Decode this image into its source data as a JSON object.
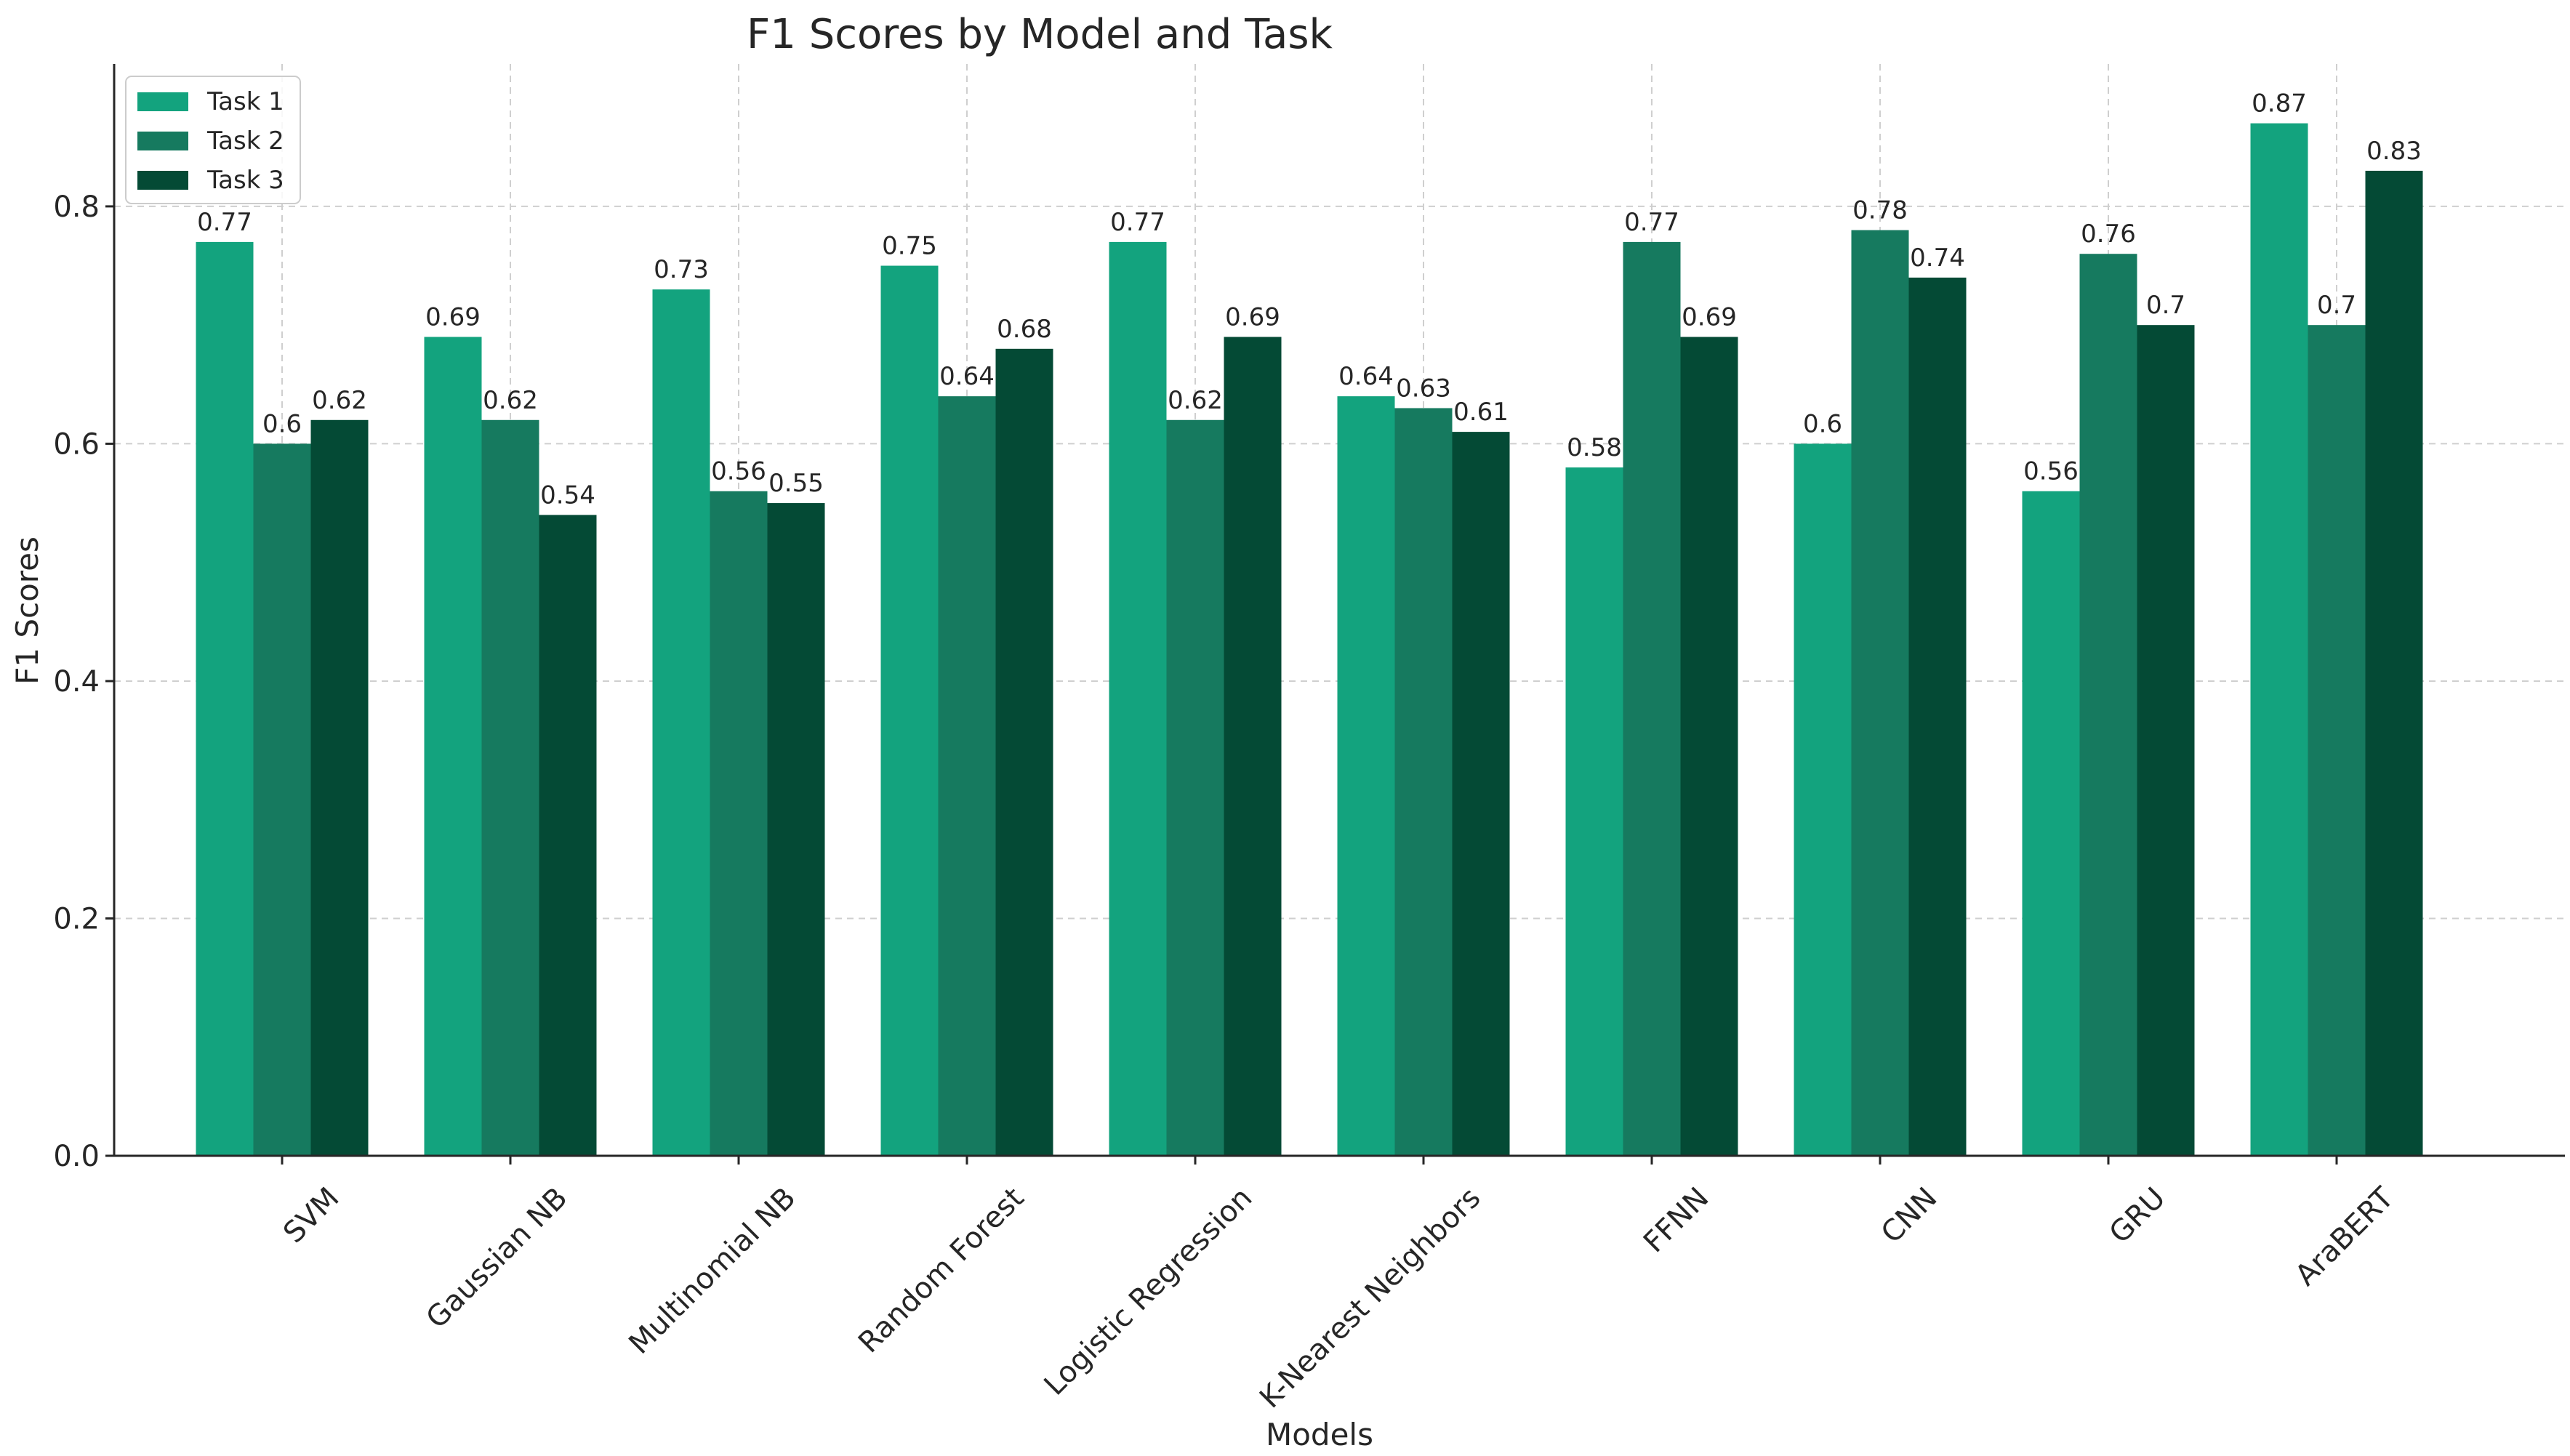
{
  "chart_data": {
    "type": "bar",
    "title": "F1 Scores by Model and Task",
    "xlabel": "Models",
    "ylabel": "F1 Scores",
    "ylim": [
      0,
      0.92
    ],
    "yticks": [
      "0.0",
      "0.2",
      "0.4",
      "0.6",
      "0.8"
    ],
    "ytick_values": [
      0,
      0.2,
      0.4,
      0.6,
      0.8
    ],
    "grid": true,
    "legend_position": "top-left",
    "categories": [
      "SVM",
      "Gaussian NB",
      "Multinomial NB",
      "Random Forest",
      "Logistic Regression",
      "K-Nearest Neighbors",
      "FFNN",
      "CNN",
      "GRU",
      "AraBERT"
    ],
    "series": [
      {
        "name": "Task 1",
        "color": "#13a37e",
        "values": [
          0.77,
          0.69,
          0.73,
          0.75,
          0.77,
          0.64,
          0.58,
          0.6,
          0.56,
          0.87
        ]
      },
      {
        "name": "Task 2",
        "color": "#167a5f",
        "values": [
          0.6,
          0.62,
          0.56,
          0.64,
          0.62,
          0.63,
          0.77,
          0.78,
          0.76,
          0.7
        ]
      },
      {
        "name": "Task 3",
        "color": "#044a35",
        "values": [
          0.62,
          0.54,
          0.55,
          0.68,
          0.69,
          0.61,
          0.69,
          0.74,
          0.7,
          0.83
        ]
      }
    ]
  }
}
